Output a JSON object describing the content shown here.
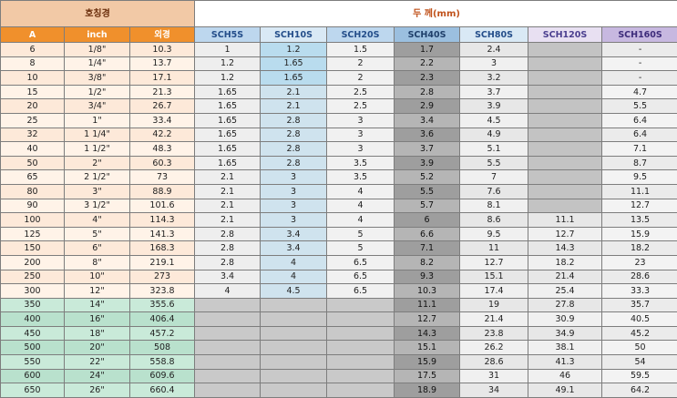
{
  "header": {
    "nominal_title": "호칭경",
    "thickness_title": "두 께(mm)",
    "columns": [
      "A",
      "inch",
      "외경",
      "SCH5S",
      "SCH10S",
      "SCH20S",
      "SCH40S",
      "SCH80S",
      "SCH120S",
      "SCH160S"
    ]
  },
  "rows": [
    {
      "a": "6",
      "inch": "1/8\"",
      "od": "10.3",
      "sch5s": "1",
      "sch10s": "1.2",
      "sch20s": "1.5",
      "sch40s": "1.7",
      "sch80s": "2.4",
      "sch120s": "",
      "sch160s": "-"
    },
    {
      "a": "8",
      "inch": "1/4\"",
      "od": "13.7",
      "sch5s": "1.2",
      "sch10s": "1.65",
      "sch20s": "2",
      "sch40s": "2.2",
      "sch80s": "3",
      "sch120s": "",
      "sch160s": "-"
    },
    {
      "a": "10",
      "inch": "3/8\"",
      "od": "17.1",
      "sch5s": "1.2",
      "sch10s": "1.65",
      "sch20s": "2",
      "sch40s": "2.3",
      "sch80s": "3.2",
      "sch120s": "",
      "sch160s": "-"
    },
    {
      "a": "15",
      "inch": "1/2\"",
      "od": "21.3",
      "sch5s": "1.65",
      "sch10s": "2.1",
      "sch20s": "2.5",
      "sch40s": "2.8",
      "sch80s": "3.7",
      "sch120s": "",
      "sch160s": "4.7"
    },
    {
      "a": "20",
      "inch": "3/4\"",
      "od": "26.7",
      "sch5s": "1.65",
      "sch10s": "2.1",
      "sch20s": "2.5",
      "sch40s": "2.9",
      "sch80s": "3.9",
      "sch120s": "",
      "sch160s": "5.5"
    },
    {
      "a": "25",
      "inch": "1\"",
      "od": "33.4",
      "sch5s": "1.65",
      "sch10s": "2.8",
      "sch20s": "3",
      "sch40s": "3.4",
      "sch80s": "4.5",
      "sch120s": "",
      "sch160s": "6.4"
    },
    {
      "a": "32",
      "inch": "1 1/4\"",
      "od": "42.2",
      "sch5s": "1.65",
      "sch10s": "2.8",
      "sch20s": "3",
      "sch40s": "3.6",
      "sch80s": "4.9",
      "sch120s": "",
      "sch160s": "6.4"
    },
    {
      "a": "40",
      "inch": "1 1/2\"",
      "od": "48.3",
      "sch5s": "1.65",
      "sch10s": "2.8",
      "sch20s": "3",
      "sch40s": "3.7",
      "sch80s": "5.1",
      "sch120s": "",
      "sch160s": "7.1"
    },
    {
      "a": "50",
      "inch": "2\"",
      "od": "60.3",
      "sch5s": "1.65",
      "sch10s": "2.8",
      "sch20s": "3.5",
      "sch40s": "3.9",
      "sch80s": "5.5",
      "sch120s": "",
      "sch160s": "8.7"
    },
    {
      "a": "65",
      "inch": "2 1/2\"",
      "od": "73",
      "sch5s": "2.1",
      "sch10s": "3",
      "sch20s": "3.5",
      "sch40s": "5.2",
      "sch80s": "7",
      "sch120s": "",
      "sch160s": "9.5"
    },
    {
      "a": "80",
      "inch": "3\"",
      "od": "88.9",
      "sch5s": "2.1",
      "sch10s": "3",
      "sch20s": "4",
      "sch40s": "5.5",
      "sch80s": "7.6",
      "sch120s": "",
      "sch160s": "11.1"
    },
    {
      "a": "90",
      "inch": "3 1/2\"",
      "od": "101.6",
      "sch5s": "2.1",
      "sch10s": "3",
      "sch20s": "4",
      "sch40s": "5.7",
      "sch80s": "8.1",
      "sch120s": "",
      "sch160s": "12.7"
    },
    {
      "a": "100",
      "inch": "4\"",
      "od": "114.3",
      "sch5s": "2.1",
      "sch10s": "3",
      "sch20s": "4",
      "sch40s": "6",
      "sch80s": "8.6",
      "sch120s": "11.1",
      "sch160s": "13.5"
    },
    {
      "a": "125",
      "inch": "5\"",
      "od": "141.3",
      "sch5s": "2.8",
      "sch10s": "3.4",
      "sch20s": "5",
      "sch40s": "6.6",
      "sch80s": "9.5",
      "sch120s": "12.7",
      "sch160s": "15.9"
    },
    {
      "a": "150",
      "inch": "6\"",
      "od": "168.3",
      "sch5s": "2.8",
      "sch10s": "3.4",
      "sch20s": "5",
      "sch40s": "7.1",
      "sch80s": "11",
      "sch120s": "14.3",
      "sch160s": "18.2"
    },
    {
      "a": "200",
      "inch": "8\"",
      "od": "219.1",
      "sch5s": "2.8",
      "sch10s": "4",
      "sch20s": "6.5",
      "sch40s": "8.2",
      "sch80s": "12.7",
      "sch120s": "18.2",
      "sch160s": "23"
    },
    {
      "a": "250",
      "inch": "10\"",
      "od": "273",
      "sch5s": "3.4",
      "sch10s": "4",
      "sch20s": "6.5",
      "sch40s": "9.3",
      "sch80s": "15.1",
      "sch120s": "21.4",
      "sch160s": "28.6"
    },
    {
      "a": "300",
      "inch": "12\"",
      "od": "323.8",
      "sch5s": "4",
      "sch10s": "4.5",
      "sch20s": "6.5",
      "sch40s": "10.3",
      "sch80s": "17.4",
      "sch120s": "25.4",
      "sch160s": "33.3"
    },
    {
      "a": "350",
      "inch": "14\"",
      "od": "355.6",
      "sch5s": "",
      "sch10s": "",
      "sch20s": "",
      "sch40s": "11.1",
      "sch80s": "19",
      "sch120s": "27.8",
      "sch160s": "35.7"
    },
    {
      "a": "400",
      "inch": "16\"",
      "od": "406.4",
      "sch5s": "",
      "sch10s": "",
      "sch20s": "",
      "sch40s": "12.7",
      "sch80s": "21.4",
      "sch120s": "30.9",
      "sch160s": "40.5"
    },
    {
      "a": "450",
      "inch": "18\"",
      "od": "457.2",
      "sch5s": "",
      "sch10s": "",
      "sch20s": "",
      "sch40s": "14.3",
      "sch80s": "23.8",
      "sch120s": "34.9",
      "sch160s": "45.2"
    },
    {
      "a": "500",
      "inch": "20\"",
      "od": "508",
      "sch5s": "",
      "sch10s": "",
      "sch20s": "",
      "sch40s": "15.1",
      "sch80s": "26.2",
      "sch120s": "38.1",
      "sch160s": "50"
    },
    {
      "a": "550",
      "inch": "22\"",
      "od": "558.8",
      "sch5s": "",
      "sch10s": "",
      "sch20s": "",
      "sch40s": "15.9",
      "sch80s": "28.6",
      "sch120s": "41.3",
      "sch160s": "54"
    },
    {
      "a": "600",
      "inch": "24\"",
      "od": "609.6",
      "sch5s": "",
      "sch10s": "",
      "sch20s": "",
      "sch40s": "17.5",
      "sch80s": "31",
      "sch120s": "46",
      "sch160s": "59.5"
    },
    {
      "a": "650",
      "inch": "26\"",
      "od": "660.4",
      "sch5s": "",
      "sch10s": "",
      "sch20s": "",
      "sch40s": "18.9",
      "sch80s": "34",
      "sch120s": "49.1",
      "sch160s": "64.2"
    }
  ]
}
